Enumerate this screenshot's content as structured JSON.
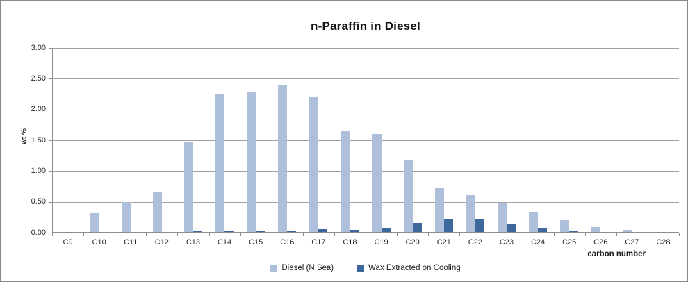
{
  "window": {
    "background": "#ffffff",
    "border_color": "#8a8a8a"
  },
  "chart_data": {
    "type": "bar",
    "title": "n-Paraffin in Diesel",
    "xlabel": "carbon number",
    "ylabel": "wt %",
    "categories": [
      "C9",
      "C10",
      "C11",
      "C12",
      "C13",
      "C14",
      "C15",
      "C16",
      "C17",
      "C18",
      "C19",
      "C20",
      "C21",
      "C22",
      "C23",
      "C24",
      "C25",
      "C26",
      "C27",
      "C28"
    ],
    "series": [
      {
        "name": "Diesel (N Sea)",
        "color": "#AEBFDB",
        "values": [
          0.01,
          0.33,
          0.5,
          0.67,
          1.47,
          2.25,
          2.29,
          2.4,
          2.21,
          1.65,
          1.6,
          1.18,
          0.73,
          0.61,
          0.48,
          0.34,
          0.2,
          0.09,
          0.04,
          0.0
        ]
      },
      {
        "name": "Wax Extracted on Cooling",
        "color": "#3E689B",
        "values": [
          0.0,
          0.0,
          0.01,
          0.01,
          0.03,
          0.02,
          0.03,
          0.03,
          0.06,
          0.05,
          0.08,
          0.16,
          0.21,
          0.22,
          0.15,
          0.08,
          0.03,
          0.01,
          0.01,
          0.0
        ]
      }
    ],
    "ylim": [
      0,
      3
    ],
    "y_ticks": [
      "3.00",
      "2.50",
      "2.00",
      "1.50",
      "1.00",
      "0.50",
      "0.00"
    ],
    "grid": true,
    "legend_position": "bottom",
    "gridline_color": "#a3a3a3",
    "axis_color": "#8c8c8c",
    "tick_label_color": "#262626"
  }
}
